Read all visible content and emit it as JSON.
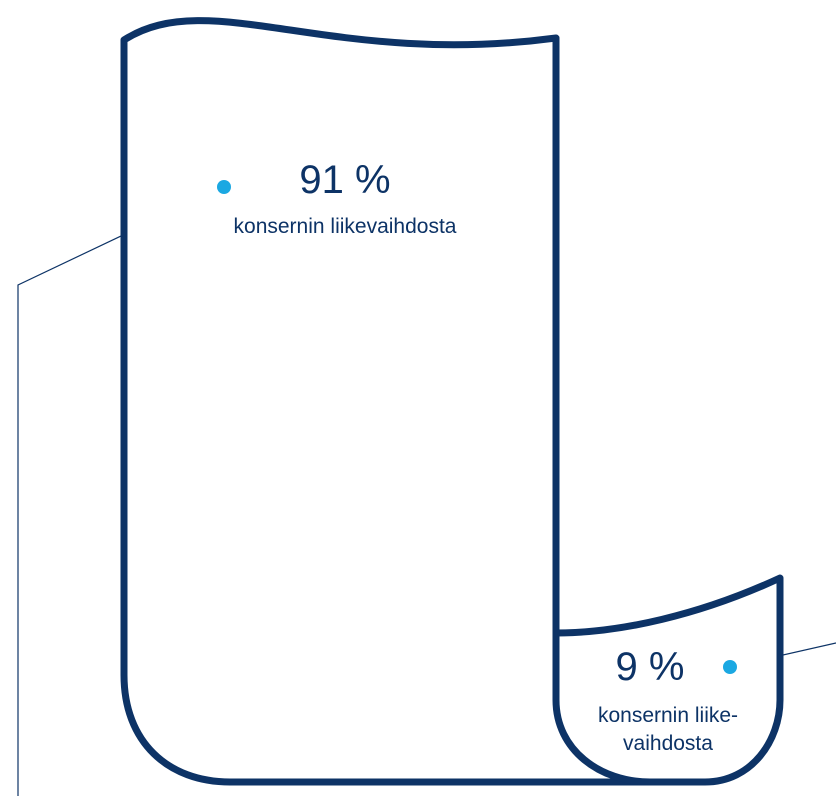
{
  "colors": {
    "outline": "#0d3366",
    "dot": "#1ba8e2",
    "leader_line": "#0d3366",
    "text": "#0d3366"
  },
  "large_segment": {
    "percent_label": "91 %",
    "caption": "konsernin liikevaihdosta"
  },
  "small_segment": {
    "percent_label": "9 %",
    "caption_line1": "konsernin liike-",
    "caption_line2": "vaihdosta"
  },
  "chart_data": {
    "type": "pie",
    "categories": [
      "konsernin liikevaihdosta",
      "konsernin liikevaihdosta"
    ],
    "values": [
      91,
      9
    ],
    "unit": "%"
  }
}
